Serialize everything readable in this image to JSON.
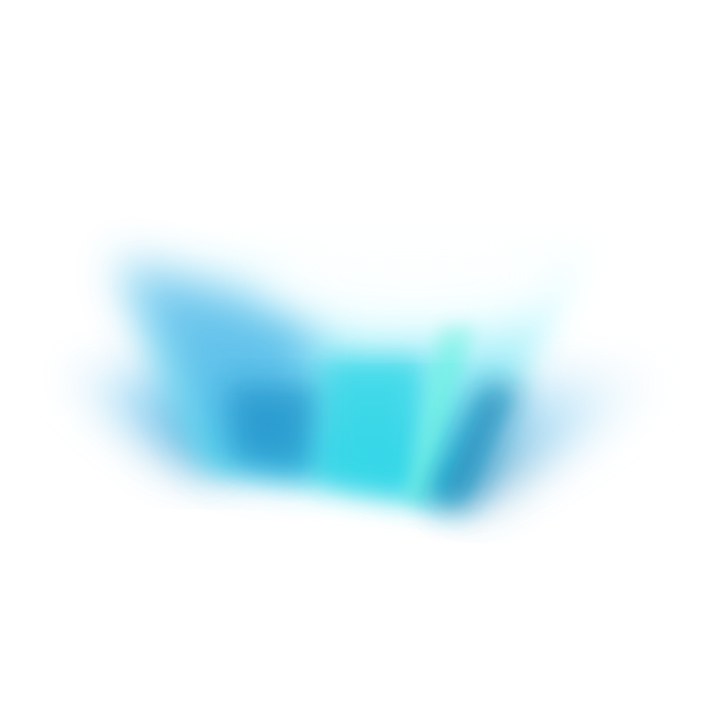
{
  "artwork": {
    "icon": "blurred-abstract-wing-shape",
    "colors": {
      "background": "#ffffff",
      "pale_cyan": "#d6fbff",
      "light_blue": "#8fd3f4",
      "sky_blue": "#48b3e6",
      "deep_blue": "#1d8fc7",
      "teal": "#2fd6e6",
      "aqua_highlight": "#74f0e6",
      "navy_edge": "#167fb5"
    }
  }
}
